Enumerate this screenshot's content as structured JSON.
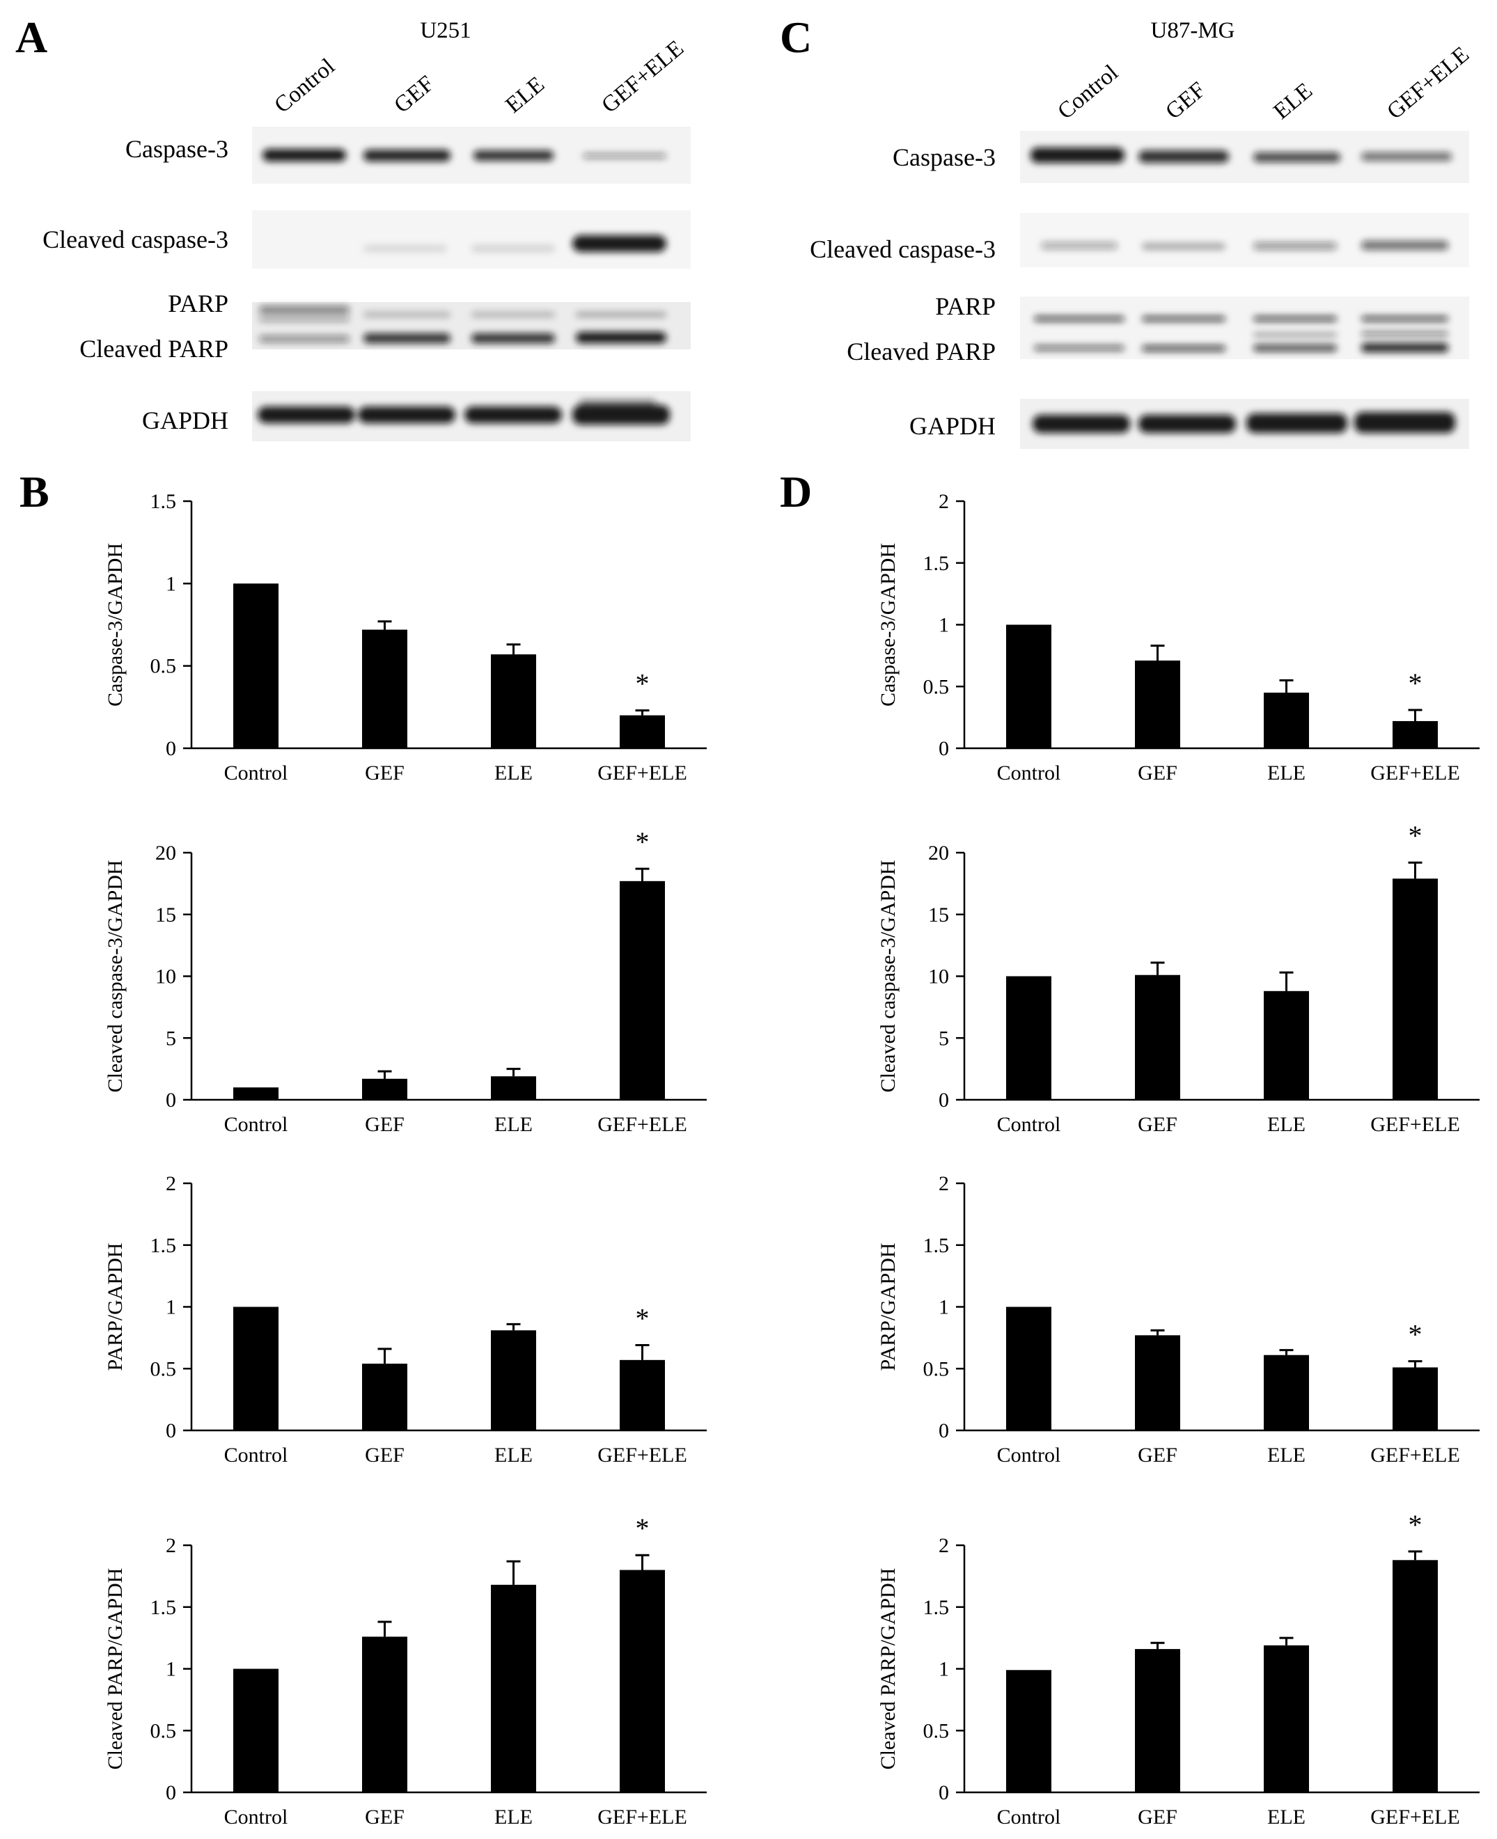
{
  "panels": {
    "A": "A",
    "B": "B",
    "C": "C",
    "D": "D"
  },
  "blots": [
    {
      "cell_line": "U251",
      "lanes": [
        "Control",
        "GEF",
        "ELE",
        "GEF+ELE"
      ],
      "labels": [
        "Caspase-3",
        "Cleaved caspase-3",
        "PARP",
        "Cleaved PARP",
        "GAPDH"
      ]
    },
    {
      "cell_line": "U87-MG",
      "lanes": [
        "Control",
        "GEF",
        "ELE",
        "GEF+ELE"
      ],
      "labels": [
        "Caspase-3",
        "Cleaved caspase-3",
        "PARP",
        "Cleaved PARP",
        "GAPDH"
      ]
    }
  ],
  "chart_data": [
    {
      "panel": "B",
      "type": "bar",
      "categories": [
        "Control",
        "GEF",
        "ELE",
        "GEF+ELE"
      ],
      "values": [
        1.0,
        0.72,
        0.57,
        0.2
      ],
      "errors": [
        0,
        0.05,
        0.06,
        0.03
      ],
      "ylabel": "Caspase-3/GAPDH",
      "ylim": [
        0,
        1.5
      ],
      "yticks": [
        "0",
        "0.5",
        "1",
        "1.5"
      ],
      "significance": [
        "",
        "",
        "",
        "*"
      ]
    },
    {
      "panel": "B",
      "type": "bar",
      "categories": [
        "Control",
        "GEF",
        "ELE",
        "GEF+ELE"
      ],
      "values": [
        1.0,
        1.7,
        1.9,
        17.7
      ],
      "errors": [
        0,
        0.6,
        0.6,
        1.0
      ],
      "ylabel": "Cleaved caspase-3/GAPDH",
      "ylim": [
        0,
        20
      ],
      "yticks": [
        "0",
        "5",
        "10",
        "15",
        "20"
      ],
      "significance": [
        "",
        "",
        "",
        "*"
      ]
    },
    {
      "panel": "B",
      "type": "bar",
      "categories": [
        "Control",
        "GEF",
        "ELE",
        "GEF+ELE"
      ],
      "values": [
        1.0,
        0.54,
        0.81,
        0.57
      ],
      "errors": [
        0,
        0.12,
        0.05,
        0.12
      ],
      "ylabel": "PARP/GAPDH",
      "ylim": [
        0,
        2
      ],
      "yticks": [
        "0",
        "0.5",
        "1",
        "1.5",
        "2"
      ],
      "significance": [
        "",
        "",
        "",
        "*"
      ]
    },
    {
      "panel": "B",
      "type": "bar",
      "categories": [
        "Control",
        "GEF",
        "ELE",
        "GEF+ELE"
      ],
      "values": [
        1.0,
        1.26,
        1.68,
        1.8
      ],
      "errors": [
        0,
        0.12,
        0.19,
        0.12
      ],
      "ylabel": "Cleaved PARP/GAPDH",
      "ylim": [
        0,
        2
      ],
      "yticks": [
        "0",
        "0.5",
        "1",
        "1.5",
        "2"
      ],
      "significance": [
        "",
        "",
        "",
        "*"
      ]
    },
    {
      "panel": "D",
      "type": "bar",
      "categories": [
        "Control",
        "GEF",
        "ELE",
        "GEF+ELE"
      ],
      "values": [
        1.0,
        0.71,
        0.45,
        0.22
      ],
      "errors": [
        0,
        0.12,
        0.1,
        0.09
      ],
      "ylabel": "Caspase-3/GAPDH",
      "ylim": [
        0,
        2
      ],
      "yticks": [
        "0",
        "0.5",
        "1",
        "1.5",
        "2"
      ],
      "significance": [
        "",
        "",
        "",
        "*"
      ]
    },
    {
      "panel": "D",
      "type": "bar",
      "categories": [
        "Control",
        "GEF",
        "ELE",
        "GEF+ELE"
      ],
      "values": [
        10.0,
        10.1,
        8.8,
        17.9
      ],
      "errors": [
        0,
        1.0,
        1.5,
        1.3
      ],
      "ylabel": "Cleaved caspase-3/GAPDH",
      "ylim": [
        0,
        20
      ],
      "yticks": [
        "0",
        "5",
        "10",
        "15",
        "20"
      ],
      "significance": [
        "",
        "",
        "",
        "*"
      ]
    },
    {
      "panel": "D",
      "type": "bar",
      "categories": [
        "Control",
        "GEF",
        "ELE",
        "GEF+ELE"
      ],
      "values": [
        1.0,
        0.77,
        0.61,
        0.51
      ],
      "errors": [
        0,
        0.04,
        0.04,
        0.05
      ],
      "ylabel": "PARP/GAPDH",
      "ylim": [
        0,
        2
      ],
      "yticks": [
        "0",
        "0.5",
        "1",
        "1.5",
        "2"
      ],
      "significance": [
        "",
        "",
        "",
        "*"
      ]
    },
    {
      "panel": "D",
      "type": "bar",
      "categories": [
        "Control",
        "GEF",
        "ELE",
        "GEF+ELE"
      ],
      "values": [
        0.99,
        1.16,
        1.19,
        1.88
      ],
      "errors": [
        0,
        0.05,
        0.06,
        0.07
      ],
      "ylabel": "Cleaved PARP/GAPDH",
      "ylim": [
        0,
        2
      ],
      "yticks": [
        "0",
        "0.5",
        "1",
        "1.5",
        "2"
      ],
      "significance": [
        "",
        "",
        "",
        "*"
      ]
    }
  ],
  "colors": {
    "bar": "#000000",
    "axis": "#000000",
    "blot_background": "#f2f2f2",
    "band": "#111111"
  }
}
